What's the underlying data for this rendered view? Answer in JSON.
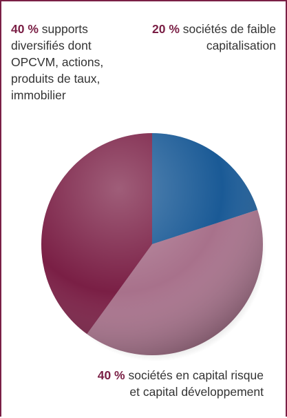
{
  "chart_data": {
    "type": "pie",
    "slices": [
      {
        "percent_label": "20 %",
        "value": 20,
        "label_lines": [
          "sociétés de faible",
          "capitalisation"
        ],
        "color": "#1a5a96"
      },
      {
        "percent_label": "40 %",
        "value": 40,
        "label_lines": [
          "sociétés en capital risque",
          "et capital développement"
        ],
        "color": "#a8718b"
      },
      {
        "percent_label": "40 %",
        "value": 40,
        "label_lines": [
          "supports",
          "diversifiés dont",
          "OPCVM, actions,",
          "produits de taux,",
          "immobilier"
        ],
        "color": "#7a1f45"
      }
    ]
  },
  "colors": {
    "accent": "#7a1f45",
    "text": "#333333",
    "border": "#7a1f45"
  }
}
